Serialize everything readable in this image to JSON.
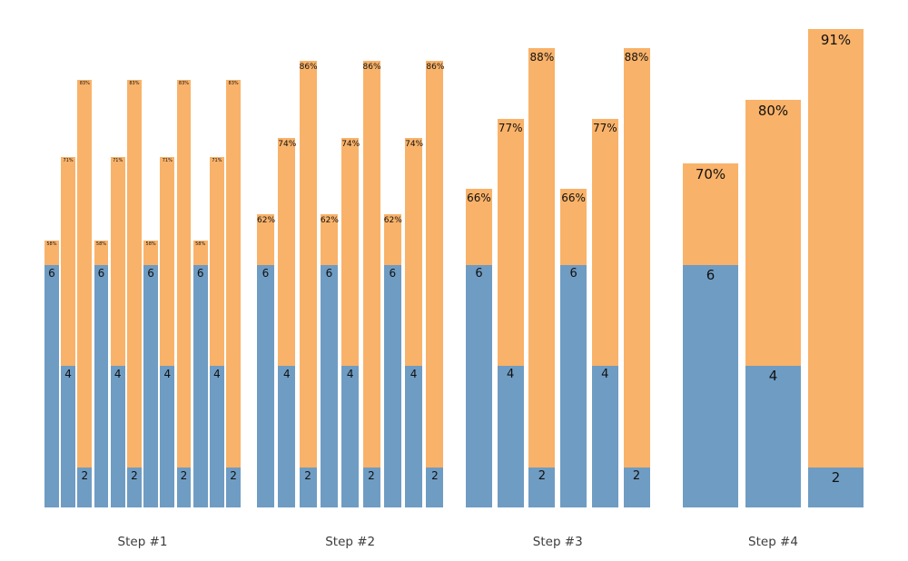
{
  "chart_data": {
    "type": "bar",
    "title": "",
    "xlabel": "",
    "ylabel": "",
    "axes_visible": false,
    "grid": false,
    "legend": "none",
    "description": "Four groups of stacked bars (blue base segment labeled with a number, orange upper segment whose top is labeled with a percentage). Successive groups have fewer bars: 12, 9, 6, 3.",
    "colors": {
      "blue": "#6f9cc3",
      "orange": "#f9b269",
      "label_text": "#111111",
      "step_label_text": "#3c3c3c"
    },
    "groups": [
      {
        "label": "Step #1",
        "bars": [
          {
            "blue_value": 6,
            "value_label": "6",
            "total_pct": 58,
            "pct_label": "58%"
          },
          {
            "blue_value": 4,
            "value_label": "4",
            "total_pct": 71,
            "pct_label": "71%"
          },
          {
            "blue_value": 2,
            "value_label": "2",
            "total_pct": 83,
            "pct_label": "83%"
          },
          {
            "blue_value": 6,
            "value_label": "6",
            "total_pct": 58,
            "pct_label": "58%"
          },
          {
            "blue_value": 4,
            "value_label": "4",
            "total_pct": 71,
            "pct_label": "71%"
          },
          {
            "blue_value": 2,
            "value_label": "2",
            "total_pct": 83,
            "pct_label": "83%"
          },
          {
            "blue_value": 6,
            "value_label": "6",
            "total_pct": 58,
            "pct_label": "58%"
          },
          {
            "blue_value": 4,
            "value_label": "4",
            "total_pct": 71,
            "pct_label": "71%"
          },
          {
            "blue_value": 2,
            "value_label": "2",
            "total_pct": 83,
            "pct_label": "83%"
          },
          {
            "blue_value": 6,
            "value_label": "6",
            "total_pct": 58,
            "pct_label": "58%"
          },
          {
            "blue_value": 4,
            "value_label": "4",
            "total_pct": 71,
            "pct_label": "71%"
          },
          {
            "blue_value": 2,
            "value_label": "2",
            "total_pct": 83,
            "pct_label": "83%"
          }
        ]
      },
      {
        "label": "Step #2",
        "bars": [
          {
            "blue_value": 6,
            "value_label": "6",
            "total_pct": 62,
            "pct_label": "62%"
          },
          {
            "blue_value": 4,
            "value_label": "4",
            "total_pct": 74,
            "pct_label": "74%"
          },
          {
            "blue_value": 2,
            "value_label": "2",
            "total_pct": 86,
            "pct_label": "86%"
          },
          {
            "blue_value": 6,
            "value_label": "6",
            "total_pct": 62,
            "pct_label": "62%"
          },
          {
            "blue_value": 4,
            "value_label": "4",
            "total_pct": 74,
            "pct_label": "74%"
          },
          {
            "blue_value": 2,
            "value_label": "2",
            "total_pct": 86,
            "pct_label": "86%"
          },
          {
            "blue_value": 6,
            "value_label": "6",
            "total_pct": 62,
            "pct_label": "62%"
          },
          {
            "blue_value": 4,
            "value_label": "4",
            "total_pct": 74,
            "pct_label": "74%"
          },
          {
            "blue_value": 2,
            "value_label": "2",
            "total_pct": 86,
            "pct_label": "86%"
          }
        ]
      },
      {
        "label": "Step #3",
        "bars": [
          {
            "blue_value": 6,
            "value_label": "6",
            "total_pct": 66,
            "pct_label": "66%"
          },
          {
            "blue_value": 4,
            "value_label": "4",
            "total_pct": 77,
            "pct_label": "77%"
          },
          {
            "blue_value": 2,
            "value_label": "2",
            "total_pct": 88,
            "pct_label": "88%"
          },
          {
            "blue_value": 6,
            "value_label": "6",
            "total_pct": 66,
            "pct_label": "66%"
          },
          {
            "blue_value": 4,
            "value_label": "4",
            "total_pct": 77,
            "pct_label": "77%"
          },
          {
            "blue_value": 2,
            "value_label": "2",
            "total_pct": 88,
            "pct_label": "88%"
          }
        ]
      },
      {
        "label": "Step #4",
        "bars": [
          {
            "blue_value": 6,
            "value_label": "6",
            "total_pct": 70,
            "pct_label": "70%"
          },
          {
            "blue_value": 4,
            "value_label": "4",
            "total_pct": 80,
            "pct_label": "80%"
          },
          {
            "blue_value": 2,
            "value_label": "2",
            "total_pct": 91,
            "pct_label": "91%"
          }
        ]
      }
    ]
  }
}
